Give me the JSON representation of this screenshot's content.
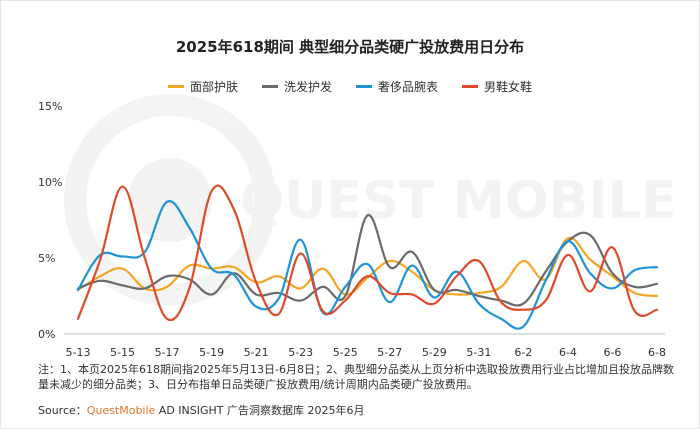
{
  "chart_data": {
    "type": "line",
    "title": "2025年618期间 典型细分品类硬广投放费用日分布",
    "xlabel": "",
    "ylabel": "",
    "ylim": [
      0,
      15
    ],
    "yticks": [
      "0%",
      "5%",
      "10%",
      "15%"
    ],
    "x": [
      "5-13",
      "5-14",
      "5-15",
      "5-16",
      "5-17",
      "5-18",
      "5-19",
      "5-20",
      "5-21",
      "5-22",
      "5-23",
      "5-24",
      "5-25",
      "5-26",
      "5-27",
      "5-28",
      "5-29",
      "5-30",
      "5-31",
      "6-1",
      "6-2",
      "6-3",
      "6-4",
      "6-5",
      "6-6",
      "6-7",
      "6-8"
    ],
    "xtick_labels": [
      "5-13",
      "5-15",
      "5-17",
      "5-19",
      "5-21",
      "5-23",
      "5-25",
      "5-27",
      "5-29",
      "5-31",
      "6-2",
      "6-4",
      "6-6",
      "6-8"
    ],
    "grid": false,
    "legend_position": "top",
    "series": [
      {
        "name": "面部护肤",
        "color": "#f5a623",
        "values": [
          2.9,
          3.8,
          4.3,
          3.0,
          3.1,
          4.5,
          4.3,
          4.4,
          3.4,
          3.8,
          3.0,
          4.3,
          2.6,
          3.7,
          4.8,
          4.1,
          2.9,
          2.6,
          2.7,
          3.1,
          4.8,
          3.6,
          6.3,
          4.9,
          3.8,
          2.7,
          2.5
        ]
      },
      {
        "name": "洗发护发",
        "color": "#6b6b6b",
        "values": [
          3.0,
          3.5,
          3.2,
          3.0,
          3.8,
          3.6,
          2.6,
          4.0,
          2.6,
          2.7,
          2.2,
          3.1,
          2.5,
          7.8,
          4.4,
          5.4,
          2.9,
          2.9,
          2.5,
          2.2,
          2.0,
          4.1,
          6.1,
          6.5,
          4.0,
          3.1,
          3.3
        ]
      },
      {
        "name": "奢侈品腕表",
        "color": "#1e93d6",
        "values": [
          2.9,
          5.2,
          5.1,
          5.4,
          8.7,
          7.0,
          4.3,
          3.9,
          1.8,
          2.3,
          6.2,
          1.4,
          3.1,
          4.6,
          2.1,
          4.5,
          2.4,
          4.1,
          2.0,
          1.0,
          0.5,
          3.5,
          6.1,
          4.0,
          3.0,
          4.2,
          4.4
        ]
      },
      {
        "name": "男鞋女鞋",
        "color": "#e04a2b",
        "values": [
          1.0,
          4.9,
          9.7,
          5.0,
          1.0,
          3.0,
          9.4,
          8.2,
          3.4,
          1.3,
          5.3,
          1.5,
          2.2,
          3.8,
          2.7,
          2.6,
          2.0,
          3.8,
          4.8,
          2.1,
          1.6,
          2.2,
          5.2,
          2.8,
          5.7,
          1.5,
          1.6
        ]
      }
    ]
  },
  "watermark": "QUEST MOBILE",
  "notes": "注：1、本页2025年618期间指2025年5月13日-6月8日；2、典型细分品类从上页分析中选取投放费用行业占比增加且投放品牌数量未减少的细分品类；3、日分布指单日品类硬广投放费用/统计周期内品类硬广投放费用。",
  "source": {
    "prefix": "Source：",
    "brand": "QuestMobile",
    "rest": " AD INSIGHT 广告洞察数据库 2025年6月"
  }
}
